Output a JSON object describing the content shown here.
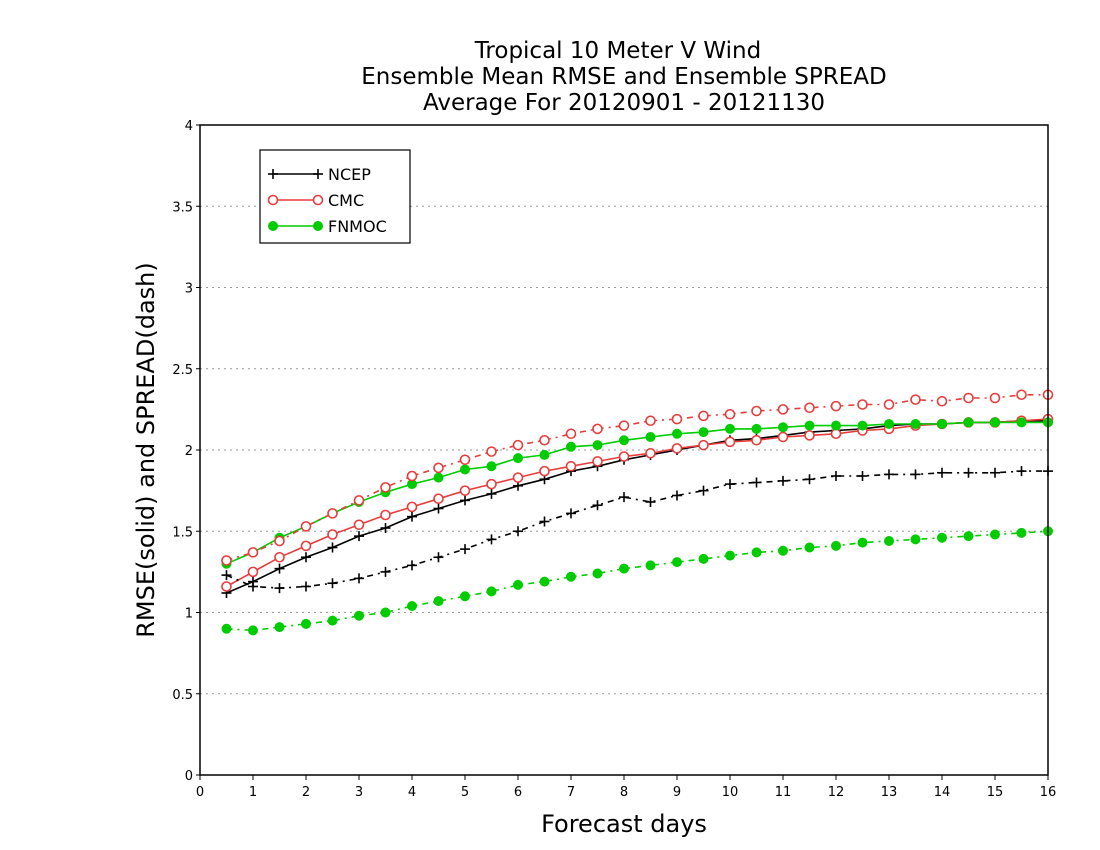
{
  "chart_data": {
    "type": "line",
    "title": [
      "Tropical 10 Meter V Wind",
      "Ensemble Mean RMSE and Ensemble SPREAD",
      "Average For 20120901 - 20121130"
    ],
    "xlabel": "Forecast days",
    "ylabel": "RMSE(solid) and SPREAD(dash)",
    "xlim": [
      0,
      16
    ],
    "ylim": [
      0,
      4
    ],
    "xticks": [
      "0",
      "1",
      "2",
      "3",
      "4",
      "5",
      "6",
      "7",
      "8",
      "9",
      "10",
      "11",
      "12",
      "13",
      "14",
      "15",
      "16"
    ],
    "yticks": [
      "0",
      "0.5",
      "1",
      "1.5",
      "2",
      "2.5",
      "3",
      "3.5",
      "4"
    ],
    "grid": "horizontal dotted",
    "legend_position": "top-left",
    "x": [
      0.5,
      1,
      1.5,
      2,
      2.5,
      3,
      3.5,
      4,
      4.5,
      5,
      5.5,
      6,
      6.5,
      7,
      7.5,
      8,
      8.5,
      9,
      9.5,
      10,
      10.5,
      11,
      11.5,
      12,
      12.5,
      13,
      13.5,
      14,
      14.5,
      15,
      15.5,
      16
    ],
    "series": [
      {
        "name": "NCEP",
        "kind": "RMSE",
        "style": "solid",
        "marker": "plus",
        "color": "#000000",
        "values": [
          1.12,
          1.19,
          1.27,
          1.34,
          1.4,
          1.47,
          1.52,
          1.59,
          1.64,
          1.69,
          1.73,
          1.78,
          1.82,
          1.87,
          1.9,
          1.94,
          1.97,
          2.0,
          2.03,
          2.06,
          2.07,
          2.09,
          2.11,
          2.12,
          2.13,
          2.15,
          2.16,
          2.16,
          2.17,
          2.17,
          2.18,
          2.18
        ]
      },
      {
        "name": "CMC",
        "kind": "RMSE",
        "style": "solid",
        "marker": "open-circle",
        "color": "#e83c3c",
        "values": [
          1.16,
          1.25,
          1.34,
          1.41,
          1.48,
          1.54,
          1.6,
          1.65,
          1.7,
          1.75,
          1.79,
          1.83,
          1.87,
          1.9,
          1.93,
          1.96,
          1.98,
          2.01,
          2.03,
          2.05,
          2.06,
          2.08,
          2.09,
          2.1,
          2.12,
          2.13,
          2.15,
          2.16,
          2.17,
          2.17,
          2.18,
          2.19
        ]
      },
      {
        "name": "FNMOC",
        "kind": "RMSE",
        "style": "solid",
        "marker": "filled-circle",
        "color": "#00cc00",
        "values": [
          1.3,
          1.37,
          1.46,
          1.53,
          1.61,
          1.68,
          1.74,
          1.79,
          1.83,
          1.88,
          1.9,
          1.95,
          1.97,
          2.02,
          2.03,
          2.06,
          2.08,
          2.1,
          2.11,
          2.13,
          2.13,
          2.14,
          2.15,
          2.15,
          2.15,
          2.16,
          2.16,
          2.16,
          2.17,
          2.17,
          2.17,
          2.17
        ]
      },
      {
        "name": "NCEP",
        "kind": "SPREAD",
        "style": "dash",
        "marker": "plus",
        "color": "#000000",
        "values": [
          1.23,
          1.16,
          1.15,
          1.16,
          1.18,
          1.21,
          1.25,
          1.29,
          1.34,
          1.39,
          1.45,
          1.5,
          1.56,
          1.61,
          1.66,
          1.71,
          1.68,
          1.72,
          1.75,
          1.79,
          1.8,
          1.81,
          1.82,
          1.84,
          1.84,
          1.85,
          1.85,
          1.86,
          1.86,
          1.86,
          1.87,
          1.87
        ]
      },
      {
        "name": "CMC",
        "kind": "SPREAD",
        "style": "dash",
        "marker": "open-circle",
        "color": "#e83c3c",
        "values": [
          1.32,
          1.37,
          1.44,
          1.53,
          1.61,
          1.69,
          1.77,
          1.84,
          1.89,
          1.94,
          1.99,
          2.03,
          2.06,
          2.1,
          2.13,
          2.15,
          2.18,
          2.19,
          2.21,
          2.22,
          2.24,
          2.25,
          2.26,
          2.27,
          2.28,
          2.28,
          2.31,
          2.3,
          2.32,
          2.32,
          2.34,
          2.34
        ]
      },
      {
        "name": "FNMOC",
        "kind": "SPREAD",
        "style": "dash",
        "marker": "filled-circle",
        "color": "#00cc00",
        "values": [
          0.9,
          0.89,
          0.91,
          0.93,
          0.95,
          0.98,
          1.0,
          1.04,
          1.07,
          1.1,
          1.13,
          1.17,
          1.19,
          1.22,
          1.24,
          1.27,
          1.29,
          1.31,
          1.33,
          1.35,
          1.37,
          1.38,
          1.4,
          1.41,
          1.43,
          1.44,
          1.45,
          1.46,
          1.47,
          1.48,
          1.49,
          1.5
        ]
      }
    ],
    "legend": [
      {
        "label": "NCEP",
        "marker": "plus",
        "color": "#000000"
      },
      {
        "label": "CMC",
        "marker": "open-circle",
        "color": "#e83c3c"
      },
      {
        "label": "FNMOC",
        "marker": "filled-circle",
        "color": "#00cc00"
      }
    ]
  }
}
